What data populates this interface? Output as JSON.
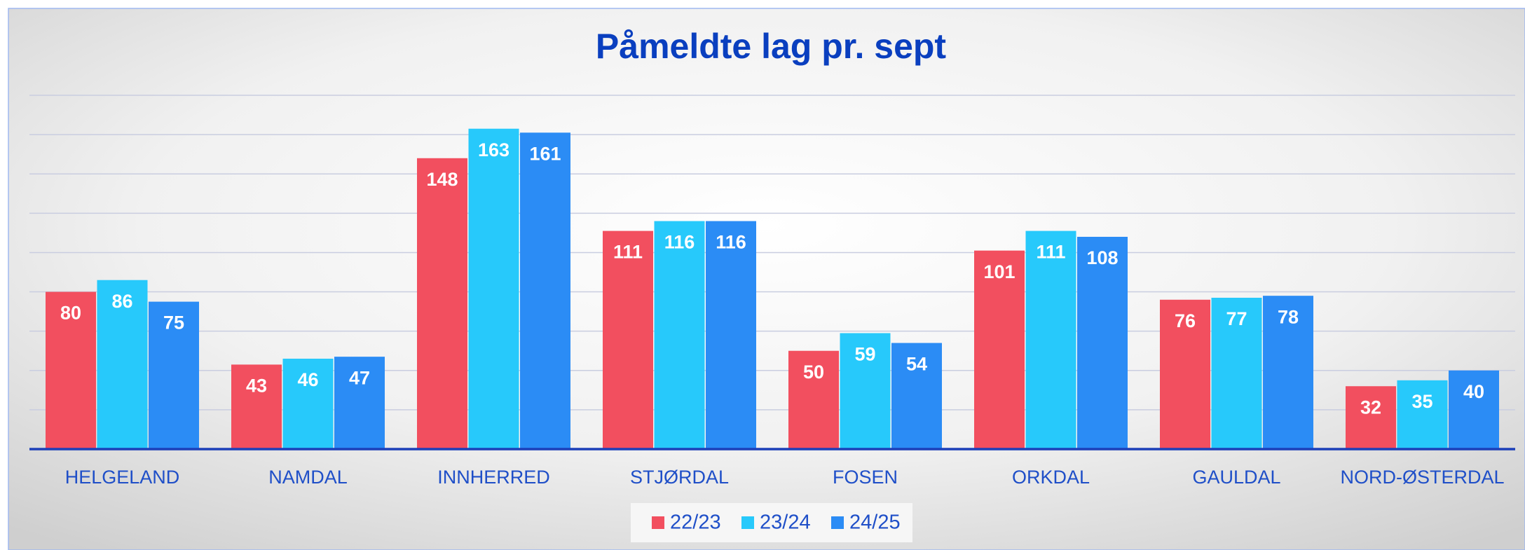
{
  "chart_data": {
    "type": "bar",
    "title": "Påmeldte lag pr. sept",
    "categories": [
      "HELGELAND",
      "NAMDAL",
      "INNHERRED",
      "STJØRDAL",
      "FOSEN",
      "ORKDAL",
      "GAULDAL",
      "NORD-ØSTERDAL"
    ],
    "series": [
      {
        "name": "22/23",
        "color": "#f24f5f",
        "values": [
          80,
          43,
          148,
          111,
          50,
          101,
          76,
          32
        ]
      },
      {
        "name": "23/24",
        "color": "#27c9fb",
        "values": [
          86,
          46,
          163,
          116,
          59,
          111,
          77,
          35
        ]
      },
      {
        "name": "24/25",
        "color": "#2b8cf5",
        "values": [
          75,
          47,
          161,
          116,
          54,
          108,
          78,
          40
        ]
      }
    ],
    "ylim": [
      0,
      180
    ],
    "yticks": [
      0,
      20,
      40,
      60,
      80,
      100,
      120,
      140,
      160,
      180
    ],
    "grid": true,
    "legend": "bottom"
  }
}
